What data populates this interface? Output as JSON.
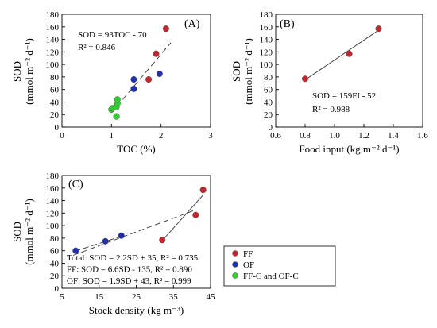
{
  "colors": {
    "FF": "#c0282d",
    "OF": "#2030b0",
    "FFC": "#33cc33",
    "line": "#333333"
  },
  "legend": {
    "items": [
      {
        "name": "FF",
        "color": "#c0282d"
      },
      {
        "name": "OF",
        "color": "#2030b0"
      },
      {
        "name": "FF-C and OF-C",
        "color": "#33cc33"
      }
    ]
  },
  "chart_data": [
    {
      "id": "A",
      "type": "scatter",
      "panel_label": "(A)",
      "xlabel": "TOC (%)",
      "ylabel": "SOD",
      "ylabel_unit": "(mmol m⁻² d⁻¹)",
      "xlim": [
        0,
        3
      ],
      "ylim": [
        0,
        180
      ],
      "xticks": [
        0,
        1,
        2,
        3
      ],
      "yticks": [
        0,
        20,
        40,
        60,
        80,
        100,
        120,
        140,
        160,
        180
      ],
      "equation": "SOD = 93TOC - 70",
      "r2": "R² = 0.846",
      "fit": {
        "slope": 93,
        "intercept": -70,
        "x_range": [
          1.0,
          2.2
        ],
        "style": "dashed"
      },
      "series": [
        {
          "name": "FF",
          "x": [
            1.75,
            1.9,
            2.1
          ],
          "y": [
            76,
            117,
            157
          ]
        },
        {
          "name": "OF",
          "x": [
            1.45,
            1.45,
            1.97
          ],
          "y": [
            61,
            76,
            85
          ]
        },
        {
          "name": "FF-C and OF-C",
          "x": [
            1.0,
            1.02,
            1.1,
            1.1,
            1.12,
            1.12
          ],
          "y": [
            28,
            30,
            17,
            32,
            38,
            44
          ]
        }
      ]
    },
    {
      "id": "B",
      "type": "scatter",
      "panel_label": "(B)",
      "xlabel": "Food input (kg m⁻² d⁻¹)",
      "ylabel": "SOD",
      "ylabel_unit": "(mmol m⁻² d⁻¹)",
      "xlim": [
        0.6,
        1.6
      ],
      "ylim": [
        0,
        180
      ],
      "xticks": [
        0.6,
        0.8,
        1.0,
        1.2,
        1.4,
        1.6
      ],
      "xtick_labels": [
        "0.6",
        "0.8",
        "1.0",
        "1.2",
        "1.4",
        "1.6"
      ],
      "yticks": [
        0,
        20,
        40,
        60,
        80,
        100,
        120,
        140,
        160,
        180
      ],
      "equation": "SOD = 159FI - 52",
      "r2": "R² = 0.988",
      "fit": {
        "slope": 159,
        "intercept": -52,
        "x_range": [
          0.8,
          1.3
        ],
        "style": "solid"
      },
      "series": [
        {
          "name": "FF",
          "x": [
            0.8,
            1.1,
            1.3
          ],
          "y": [
            77,
            117,
            157
          ]
        }
      ]
    },
    {
      "id": "C",
      "type": "scatter",
      "panel_label": "(C)",
      "xlabel": "Stock density (kg m⁻³)",
      "ylabel": "SOD",
      "ylabel_unit": "(mmol m⁻² d⁻¹)",
      "xlim": [
        5,
        45
      ],
      "ylim": [
        0,
        180
      ],
      "xticks": [
        5,
        15,
        25,
        35,
        45
      ],
      "yticks": [
        0,
        20,
        40,
        60,
        80,
        100,
        120,
        140,
        160,
        180
      ],
      "equations": [
        "Total: SOD = 2.2SD + 35, R² = 0.735",
        "FF: SOD = 6.6SD - 135, R² = 0.890",
        "OF: SOD = 1.9SD + 43, R² = 0.999"
      ],
      "fits": [
        {
          "name": "Total",
          "slope": 2.2,
          "intercept": 35,
          "x_range": [
            8,
            41
          ],
          "style": "dashed"
        },
        {
          "name": "FF",
          "slope": 6.6,
          "intercept": -135,
          "x_range": [
            32,
            43
          ],
          "style": "solid"
        },
        {
          "name": "OF",
          "slope": 1.9,
          "intercept": 43,
          "x_range": [
            8.5,
            21
          ],
          "style": "dashed"
        }
      ],
      "series": [
        {
          "name": "FF",
          "x": [
            32,
            41,
            43
          ],
          "y": [
            77,
            117,
            157
          ]
        },
        {
          "name": "OF",
          "x": [
            8.7,
            16.7,
            21
          ],
          "y": [
            60,
            75,
            84
          ]
        }
      ]
    }
  ]
}
